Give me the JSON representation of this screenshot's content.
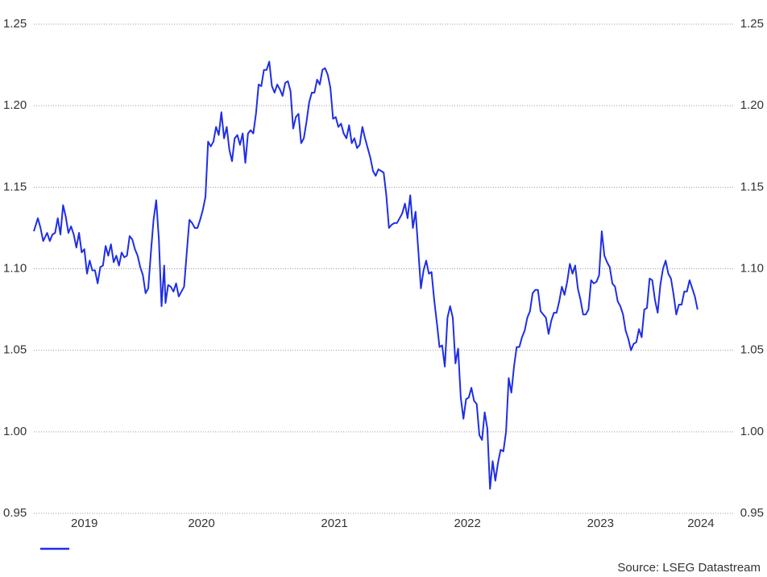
{
  "chart_data": {
    "type": "line",
    "source": "Source: LSEG Datastream",
    "xlim": [
      2019.24,
      2024.51
    ],
    "xticks": [
      {
        "value": 2019,
        "label": "2019"
      },
      {
        "value": 2020,
        "label": "2020"
      },
      {
        "value": 2021,
        "label": "2021"
      },
      {
        "value": 2022,
        "label": "2022"
      },
      {
        "value": 2023,
        "label": "2023"
      },
      {
        "value": 2024,
        "label": "2024"
      }
    ],
    "ylim": [
      0.95,
      1.25
    ],
    "yticks": [
      {
        "value": 0.95,
        "label": "0.95"
      },
      {
        "value": 1.0,
        "label": "1.00"
      },
      {
        "value": 1.05,
        "label": "1.05"
      },
      {
        "value": 1.1,
        "label": "1.10"
      },
      {
        "value": 1.15,
        "label": "1.15"
      },
      {
        "value": 1.2,
        "label": "1.20"
      },
      {
        "value": 1.25,
        "label": "1.25"
      }
    ],
    "y2lim": [
      0.95,
      1.25
    ],
    "y2ticks": [
      {
        "value": 0.95,
        "label": "0.95"
      },
      {
        "value": 1.0,
        "label": "1.00"
      },
      {
        "value": 1.05,
        "label": "1.05"
      },
      {
        "value": 1.1,
        "label": "1.10"
      },
      {
        "value": 1.15,
        "label": "1.15"
      },
      {
        "value": 1.2,
        "label": "1.20"
      },
      {
        "value": 1.25,
        "label": "1.25"
      }
    ],
    "grid": true,
    "series": [
      {
        "color": "#1f2ee6",
        "x": [
          2019.24,
          2019.27,
          2019.29,
          2019.31,
          2019.34,
          2019.36,
          2019.38,
          2019.4,
          2019.42,
          2019.44,
          2019.46,
          2019.48,
          2019.5,
          2019.52,
          2019.54,
          2019.56,
          2019.58,
          2019.6,
          2019.62,
          2019.64,
          2019.66,
          2019.68,
          2019.7,
          2019.72,
          2019.74,
          2019.76,
          2019.78,
          2019.8,
          2019.82,
          2019.84,
          2019.86,
          2019.88,
          2019.9,
          2019.92,
          2019.94,
          2019.96,
          2019.98,
          2020.0,
          2020.02,
          2020.04,
          2020.06,
          2020.08,
          2020.1,
          2020.12,
          2020.14,
          2020.16,
          2020.18,
          2020.2,
          2020.22,
          2020.23,
          2020.25,
          2020.27,
          2020.29,
          2020.31,
          2020.33,
          2020.35,
          2020.37,
          2020.39,
          2020.41,
          2020.43,
          2020.45,
          2020.47,
          2020.49,
          2020.51,
          2020.53,
          2020.55,
          2020.57,
          2020.59,
          2020.61,
          2020.63,
          2020.65,
          2020.67,
          2020.69,
          2020.71,
          2020.73,
          2020.75,
          2020.77,
          2020.79,
          2020.81,
          2020.83,
          2020.85,
          2020.87,
          2020.89,
          2020.91,
          2020.93,
          2020.95,
          2020.97,
          2020.99,
          2021.01,
          2021.03,
          2021.05,
          2021.07,
          2021.09,
          2021.11,
          2021.13,
          2021.15,
          2021.17,
          2021.19,
          2021.21,
          2021.23,
          2021.25,
          2021.27,
          2021.29,
          2021.31,
          2021.33,
          2021.35,
          2021.37,
          2021.39,
          2021.41,
          2021.43,
          2021.45,
          2021.47,
          2021.49,
          2021.51,
          2021.53,
          2021.55,
          2021.57,
          2021.59,
          2021.61,
          2021.63,
          2021.65,
          2021.67,
          2021.69,
          2021.71,
          2021.73,
          2021.75,
          2021.77,
          2021.79,
          2021.81,
          2021.83,
          2021.85,
          2021.87,
          2021.89,
          2021.91,
          2021.93,
          2021.95,
          2021.97,
          2021.99,
          2022.01,
          2022.03,
          2022.05,
          2022.07,
          2022.09,
          2022.11,
          2022.13,
          2022.15,
          2022.17,
          2022.19,
          2022.21,
          2022.23,
          2022.25,
          2022.27,
          2022.29,
          2022.31,
          2022.33,
          2022.35,
          2022.37,
          2022.39,
          2022.41,
          2022.43,
          2022.45,
          2022.47,
          2022.49,
          2022.51,
          2022.53,
          2022.55,
          2022.57,
          2022.59,
          2022.61,
          2022.63,
          2022.65,
          2022.67,
          2022.69,
          2022.71,
          2022.73,
          2022.75,
          2022.77,
          2022.79,
          2022.81,
          2022.83,
          2022.85,
          2022.87,
          2022.89,
          2022.91,
          2022.93,
          2022.95,
          2022.97,
          2022.99,
          2023.01,
          2023.03,
          2023.05,
          2023.07,
          2023.09,
          2023.11,
          2023.13,
          2023.15,
          2023.17,
          2023.19,
          2023.21,
          2023.23,
          2023.25,
          2023.27,
          2023.29,
          2023.31,
          2023.33,
          2023.35,
          2023.37,
          2023.39,
          2023.41,
          2023.43,
          2023.45,
          2023.47,
          2023.49,
          2023.51,
          2023.53,
          2023.55,
          2023.57,
          2023.59,
          2023.61,
          2023.63,
          2023.65,
          2023.67,
          2023.69,
          2023.71,
          2023.73,
          2023.75,
          2023.77,
          2023.79,
          2023.81,
          2023.83,
          2023.85,
          2023.87,
          2023.89,
          2023.91,
          2023.93,
          2023.95,
          2023.97,
          2023.99,
          2024.01,
          2024.03,
          2024.05,
          2024.07,
          2024.09,
          2024.11,
          2024.13,
          2024.15,
          2024.17,
          2024.19,
          2024.21,
          2024.23
        ],
        "values": [
          1.123,
          1.131,
          1.125,
          1.117,
          1.122,
          1.117,
          1.121,
          1.122,
          1.131,
          1.121,
          1.139,
          1.132,
          1.122,
          1.126,
          1.121,
          1.113,
          1.122,
          1.11,
          1.112,
          1.097,
          1.105,
          1.099,
          1.099,
          1.091,
          1.101,
          1.102,
          1.114,
          1.108,
          1.115,
          1.104,
          1.108,
          1.102,
          1.11,
          1.107,
          1.108,
          1.12,
          1.118,
          1.112,
          1.108,
          1.101,
          1.096,
          1.085,
          1.088,
          1.11,
          1.13,
          1.142,
          1.118,
          1.077,
          1.102,
          1.079,
          1.09,
          1.089,
          1.086,
          1.091,
          1.083,
          1.086,
          1.089,
          1.11,
          1.13,
          1.128,
          1.125,
          1.125,
          1.13,
          1.136,
          1.144,
          1.178,
          1.175,
          1.178,
          1.187,
          1.182,
          1.196,
          1.18,
          1.187,
          1.173,
          1.166,
          1.18,
          1.182,
          1.176,
          1.183,
          1.165,
          1.183,
          1.185,
          1.183,
          1.195,
          1.213,
          1.212,
          1.222,
          1.222,
          1.227,
          1.212,
          1.208,
          1.213,
          1.21,
          1.206,
          1.214,
          1.215,
          1.209,
          1.186,
          1.193,
          1.195,
          1.177,
          1.18,
          1.19,
          1.202,
          1.208,
          1.208,
          1.216,
          1.213,
          1.222,
          1.223,
          1.219,
          1.211,
          1.192,
          1.193,
          1.187,
          1.189,
          1.183,
          1.18,
          1.188,
          1.177,
          1.18,
          1.174,
          1.176,
          1.187,
          1.18,
          1.174,
          1.168,
          1.16,
          1.157,
          1.161,
          1.16,
          1.159,
          1.145,
          1.125,
          1.127,
          1.128,
          1.128,
          1.131,
          1.134,
          1.14,
          1.131,
          1.145,
          1.125,
          1.135,
          1.112,
          1.088,
          1.099,
          1.105,
          1.097,
          1.098,
          1.081,
          1.067,
          1.052,
          1.053,
          1.04,
          1.07,
          1.077,
          1.07,
          1.042,
          1.051,
          1.021,
          1.008,
          1.02,
          1.021,
          1.027,
          1.019,
          1.017,
          0.998,
          0.995,
          1.012,
          1.002,
          0.965,
          0.982,
          0.97,
          0.981,
          0.989,
          0.988,
          1.0,
          1.033,
          1.024,
          1.04,
          1.052,
          1.052,
          1.058,
          1.062,
          1.07,
          1.074,
          1.085,
          1.087,
          1.087,
          1.074,
          1.072,
          1.07,
          1.06,
          1.068,
          1.073,
          1.073,
          1.08,
          1.089,
          1.084,
          1.092,
          1.103,
          1.097,
          1.102,
          1.088,
          1.081,
          1.072,
          1.072,
          1.075,
          1.093,
          1.091,
          1.092,
          1.096,
          1.123,
          1.108,
          1.104,
          1.101,
          1.091,
          1.089,
          1.08,
          1.077,
          1.072,
          1.062,
          1.057,
          1.05,
          1.054,
          1.055,
          1.063,
          1.058,
          1.075,
          1.076,
          1.094,
          1.093,
          1.081,
          1.073,
          1.09,
          1.1,
          1.105,
          1.097,
          1.094,
          1.084,
          1.072,
          1.078,
          1.078,
          1.086,
          1.086,
          1.093,
          1.088,
          1.083,
          1.075
        ]
      }
    ]
  }
}
